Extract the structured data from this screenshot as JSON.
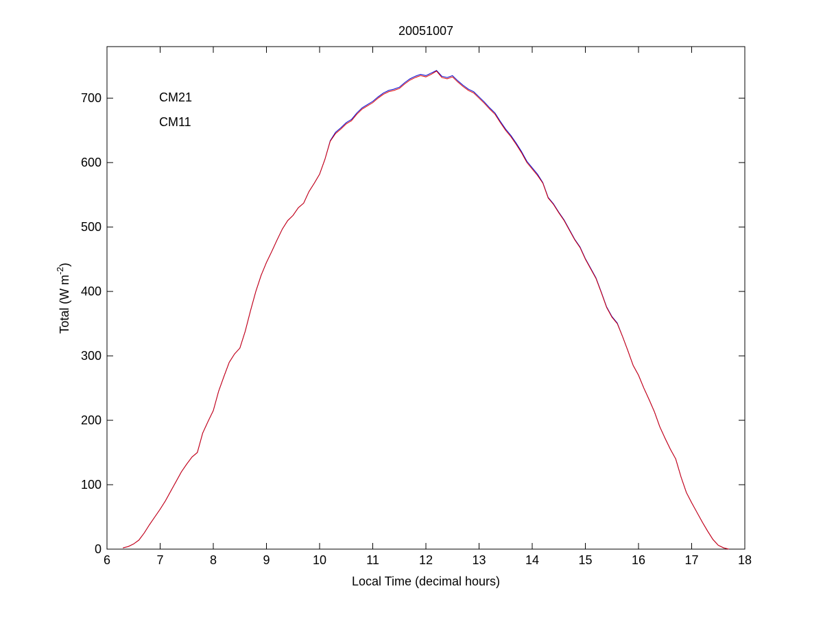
{
  "chart_data": {
    "type": "line",
    "title": "20051007",
    "xlabel": "Local Time (decimal hours)",
    "ylabel": [
      "Total (W m",
      "-2",
      ")"
    ],
    "xlim": [
      6,
      18
    ],
    "xticks": [
      6,
      7,
      8,
      9,
      10,
      11,
      12,
      13,
      14,
      15,
      16,
      17,
      18
    ],
    "ylim": [
      0,
      780
    ],
    "yticks": [
      0,
      100,
      200,
      300,
      400,
      500,
      600,
      700
    ],
    "legend": "upper left",
    "grid": false,
    "x": [
      6.3,
      6.4,
      6.5,
      6.6,
      6.7,
      6.8,
      6.9,
      7.0,
      7.1,
      7.2,
      7.3,
      7.4,
      7.5,
      7.6,
      7.7,
      7.8,
      7.9,
      8.0,
      8.1,
      8.2,
      8.3,
      8.4,
      8.5,
      8.6,
      8.7,
      8.8,
      8.9,
      9.0,
      9.1,
      9.2,
      9.3,
      9.4,
      9.5,
      9.6,
      9.7,
      9.8,
      9.9,
      10.0,
      10.1,
      10.2,
      10.3,
      10.4,
      10.5,
      10.6,
      10.7,
      10.8,
      10.9,
      11.0,
      11.1,
      11.2,
      11.3,
      11.4,
      11.5,
      11.6,
      11.7,
      11.8,
      11.9,
      12.0,
      12.1,
      12.2,
      12.3,
      12.4,
      12.5,
      12.6,
      12.7,
      12.8,
      12.9,
      13.0,
      13.1,
      13.2,
      13.3,
      13.4,
      13.5,
      13.6,
      13.7,
      13.8,
      13.9,
      14.0,
      14.1,
      14.2,
      14.3,
      14.4,
      14.5,
      14.6,
      14.7,
      14.8,
      14.9,
      15.0,
      15.1,
      15.2,
      15.3,
      15.4,
      15.5,
      15.6,
      15.7,
      15.8,
      15.9,
      16.0,
      16.1,
      16.2,
      16.3,
      16.4,
      16.5,
      16.6,
      16.7,
      16.8,
      16.9,
      17.0,
      17.1,
      17.2,
      17.3,
      17.4,
      17.5,
      17.6,
      17.7
    ],
    "series": [
      {
        "name": "CM21",
        "color": "#0000cc",
        "values": [
          2,
          4,
          8,
          14,
          25,
          38,
          50,
          62,
          75,
          90,
          105,
          120,
          132,
          143,
          150,
          180,
          198,
          215,
          245,
          268,
          290,
          303,
          312,
          338,
          370,
          400,
          425,
          445,
          462,
          480,
          497,
          510,
          518,
          530,
          537,
          555,
          568,
          582,
          605,
          634,
          647,
          654,
          662,
          667,
          677,
          685,
          690,
          695,
          702,
          708,
          712,
          714,
          717,
          724,
          730,
          734,
          737,
          735,
          739,
          743,
          734,
          732,
          735,
          727,
          720,
          714,
          710,
          702,
          694,
          685,
          677,
          664,
          652,
          642,
          630,
          617,
          602,
          592,
          582,
          569,
          546,
          536,
          523,
          511,
          496,
          481,
          469,
          451,
          436,
          421,
          399,
          376,
          361,
          351,
          330,
          308,
          285,
          270,
          250,
          232,
          213,
          190,
          172,
          155,
          140,
          112,
          88,
          72,
          57,
          42,
          28,
          15,
          6,
          2,
          0
        ]
      },
      {
        "name": "CM11",
        "color": "#dd0000",
        "values": [
          2,
          4,
          8,
          14,
          25,
          38,
          50,
          62,
          75,
          90,
          105,
          120,
          132,
          143,
          150,
          180,
          198,
          215,
          245,
          268,
          290,
          303,
          312,
          338,
          370,
          400,
          425,
          445,
          462,
          480,
          497,
          510,
          518,
          530,
          537,
          555,
          568,
          582,
          605,
          633,
          645,
          652,
          660,
          665,
          675,
          683,
          688,
          693,
          700,
          706,
          710,
          712,
          715,
          722,
          728,
          732,
          735,
          733,
          737,
          742,
          732,
          730,
          733,
          725,
          718,
          712,
          708,
          700,
          692,
          683,
          675,
          662,
          650,
          640,
          628,
          615,
          600,
          590,
          580,
          568,
          545,
          535,
          522,
          510,
          495,
          480,
          468,
          450,
          435,
          420,
          398,
          375,
          360,
          350,
          330,
          308,
          285,
          270,
          250,
          232,
          213,
          190,
          172,
          155,
          140,
          112,
          88,
          72,
          57,
          42,
          28,
          15,
          6,
          2,
          0
        ]
      }
    ]
  }
}
